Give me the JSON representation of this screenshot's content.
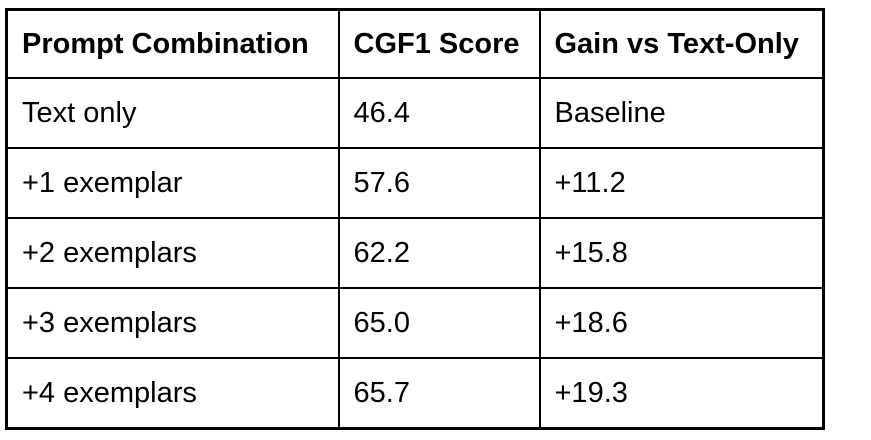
{
  "colors": {
    "border": "#000000",
    "background": "#ffffff",
    "text": "#000000"
  },
  "table": {
    "columns": [
      "Prompt Combination",
      "CGF1 Score",
      "Gain vs Text-Only"
    ],
    "rows": [
      [
        "Text only",
        "46.4",
        "Baseline"
      ],
      [
        "+1 exemplar",
        "57.6",
        "+11.2"
      ],
      [
        "+2 exemplars",
        "62.2",
        "+15.8"
      ],
      [
        "+3 exemplars",
        "65.0",
        "+18.6"
      ],
      [
        "+4 exemplars",
        "65.7",
        "+19.3"
      ]
    ]
  },
  "chart_data": {
    "type": "table",
    "title": "",
    "columns": [
      "Prompt Combination",
      "CGF1 Score",
      "Gain vs Text-Only"
    ],
    "categories": [
      "Text only",
      "+1 exemplar",
      "+2 exemplars",
      "+3 exemplars",
      "+4 exemplars"
    ],
    "series": [
      {
        "name": "CGF1 Score",
        "values": [
          46.4,
          57.6,
          62.2,
          65.0,
          65.7
        ]
      },
      {
        "name": "Gain vs Text-Only",
        "values": [
          null,
          11.2,
          15.8,
          18.6,
          19.3
        ]
      }
    ],
    "notes": "First row gain cell reads 'Baseline'; gains shown with leading + signs"
  }
}
